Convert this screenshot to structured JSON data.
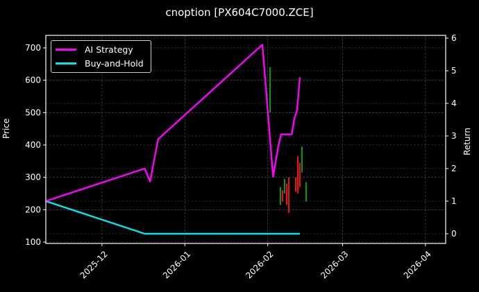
{
  "chart_data": {
    "type": "line",
    "title": "cnoption [PX604C7000.ZCE]",
    "xlabel": "",
    "ylabel": "Price",
    "ylabel_right": "Return",
    "x_tick_labels": [
      "2025-12",
      "2026-01",
      "2026-02",
      "2026-03",
      "2026-04"
    ],
    "y_ticks_left": [
      100,
      200,
      300,
      400,
      500,
      600,
      700
    ],
    "y_ticks_right": [
      0,
      1,
      2,
      3,
      4,
      5,
      6
    ],
    "ylim_left": [
      95,
      740
    ],
    "ylim_right": [
      -0.15,
      6.0
    ],
    "grid": true,
    "legend_position": "upper left",
    "series": [
      {
        "name": "AI Strategy",
        "axis": "right",
        "color": "#ff00ff",
        "points": [
          {
            "date": "2025-11-10",
            "value": 1.0
          },
          {
            "date": "2025-12-17",
            "value": 2.0
          },
          {
            "date": "2025-12-19",
            "value": 1.6
          },
          {
            "date": "2025-12-22",
            "value": 2.9
          },
          {
            "date": "2026-01-30",
            "value": 5.8
          },
          {
            "date": "2026-02-03",
            "value": 1.75
          },
          {
            "date": "2026-02-05",
            "value": 2.7
          },
          {
            "date": "2026-02-06",
            "value": 3.05
          },
          {
            "date": "2026-02-10",
            "value": 3.05
          },
          {
            "date": "2026-02-11",
            "value": 3.55
          },
          {
            "date": "2026-02-12",
            "value": 3.8
          },
          {
            "date": "2026-02-13",
            "value": 4.8
          }
        ]
      },
      {
        "name": "Buy-and-Hold",
        "axis": "right",
        "color": "#00e5ee",
        "points": [
          {
            "date": "2025-11-10",
            "value": 1.0
          },
          {
            "date": "2025-12-17",
            "value": 0.0
          },
          {
            "date": "2026-02-13",
            "value": 0.0
          }
        ]
      }
    ],
    "candles": [
      {
        "x": 389,
        "open": 500,
        "close": 640,
        "color": "green"
      },
      {
        "x": 404,
        "open": 215,
        "close": 270,
        "color": "green"
      },
      {
        "x": 407,
        "open": 260,
        "close": 225,
        "color": "red"
      },
      {
        "x": 410,
        "open": 250,
        "close": 295,
        "color": "green"
      },
      {
        "x": 413,
        "open": 280,
        "close": 215,
        "color": "red"
      },
      {
        "x": 416,
        "open": 300,
        "close": 190,
        "color": "red"
      },
      {
        "x": 426,
        "open": 300,
        "close": 255,
        "color": "red"
      },
      {
        "x": 429,
        "open": 365,
        "close": 250,
        "color": "red"
      },
      {
        "x": 432,
        "open": 345,
        "close": 270,
        "color": "red"
      },
      {
        "x": 435,
        "open": 315,
        "close": 395,
        "color": "green"
      },
      {
        "x": 441,
        "open": 225,
        "close": 285,
        "color": "green"
      }
    ]
  },
  "ui": {
    "title": "cnoption [PX604C7000.ZCE]",
    "ylabel_left": "Price",
    "ylabel_right": "Return",
    "legend": [
      {
        "label": "AI Strategy",
        "color": "#ff00ff"
      },
      {
        "label": "Buy-and-Hold",
        "color": "#00e5ee"
      }
    ]
  }
}
